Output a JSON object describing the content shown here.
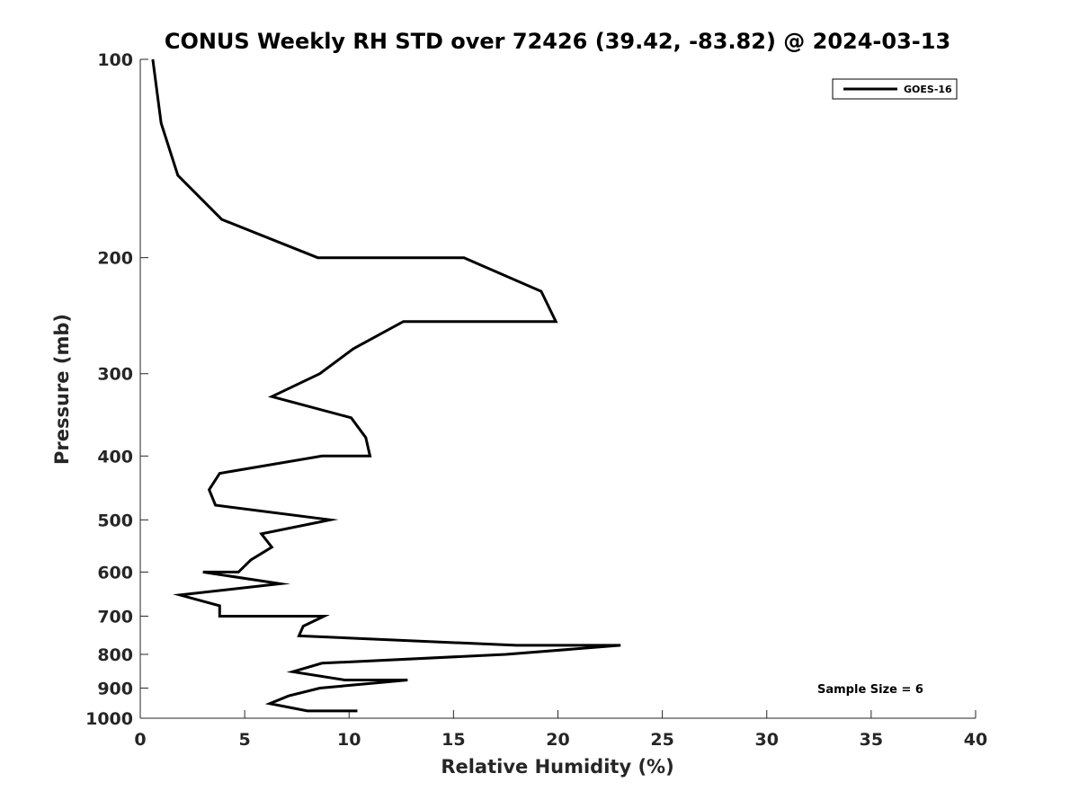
{
  "chart_data": {
    "type": "line",
    "title": "CONUS Weekly RH STD over 72426 (39.42, -83.82) @ 2024-03-13",
    "xlabel": "Relative Humidity (%)",
    "ylabel": "Pressure (mb)",
    "xlim": [
      0,
      40
    ],
    "ylim": [
      100,
      1000
    ],
    "y_scale": "log",
    "y_reversed": true,
    "x_ticks": [
      "0",
      "5",
      "10",
      "15",
      "20",
      "25",
      "30",
      "35",
      "40"
    ],
    "y_ticks": [
      "100",
      "200",
      "300",
      "400",
      "500",
      "600",
      "700",
      "800",
      "900",
      "1000"
    ],
    "grid": false,
    "legend_position": "top-right",
    "annotation": "Sample Size = 6",
    "series": [
      {
        "name": "GOES-16",
        "color": "#000000",
        "points": [
          [
            0.6,
            100
          ],
          [
            1.0,
            125
          ],
          [
            1.8,
            150
          ],
          [
            3.9,
            175
          ],
          [
            8.5,
            200
          ],
          [
            15.5,
            200
          ],
          [
            19.2,
            225
          ],
          [
            19.9,
            250
          ],
          [
            12.6,
            250
          ],
          [
            10.2,
            275
          ],
          [
            8.6,
            300
          ],
          [
            6.3,
            325
          ],
          [
            10.1,
            350
          ],
          [
            10.8,
            375
          ],
          [
            11.0,
            400
          ],
          [
            8.7,
            400
          ],
          [
            3.8,
            425
          ],
          [
            3.3,
            450
          ],
          [
            3.6,
            475
          ],
          [
            9.1,
            500
          ],
          [
            5.8,
            525
          ],
          [
            6.3,
            550
          ],
          [
            5.3,
            575
          ],
          [
            4.7,
            600
          ],
          [
            3.0,
            600
          ],
          [
            6.7,
            625
          ],
          [
            1.9,
            650
          ],
          [
            3.8,
            675
          ],
          [
            3.8,
            700
          ],
          [
            8.8,
            700
          ],
          [
            7.8,
            725
          ],
          [
            7.6,
            750
          ],
          [
            18.0,
            775
          ],
          [
            23.0,
            775
          ],
          [
            17.5,
            800
          ],
          [
            8.7,
            825
          ],
          [
            7.3,
            850
          ],
          [
            9.8,
            875
          ],
          [
            12.8,
            875
          ],
          [
            8.6,
            900
          ],
          [
            7.1,
            925
          ],
          [
            6.2,
            950
          ],
          [
            8.0,
            975
          ],
          [
            10.4,
            975
          ]
        ]
      }
    ]
  }
}
